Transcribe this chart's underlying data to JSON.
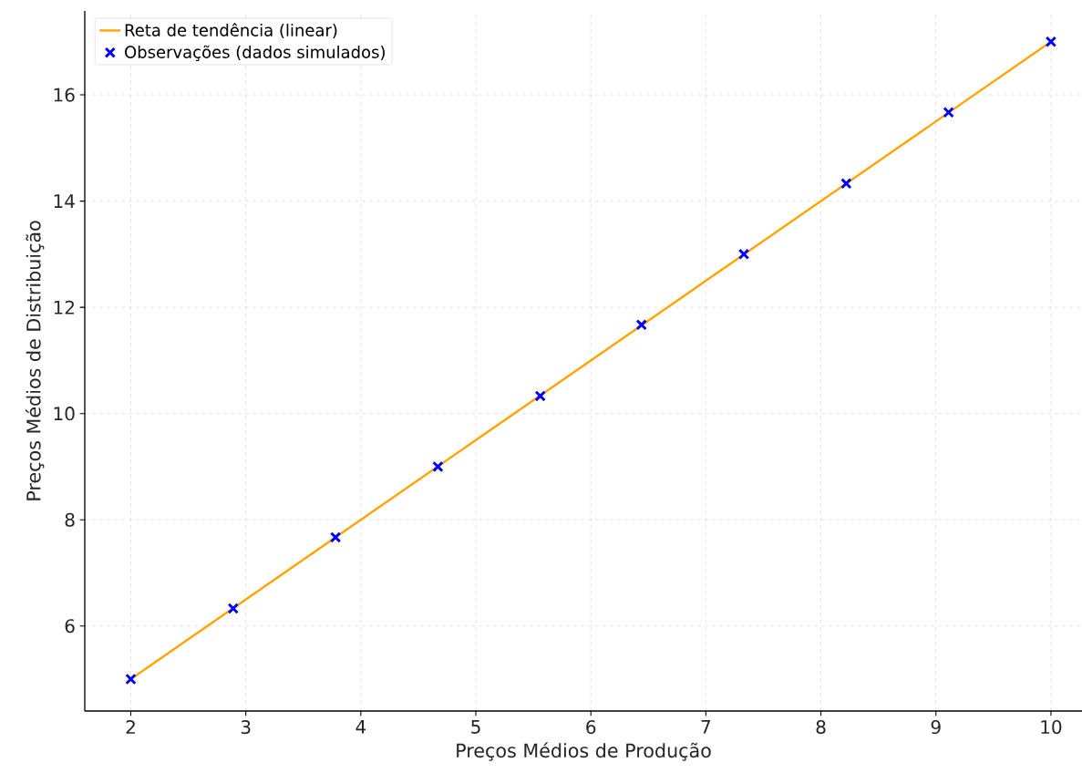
{
  "chart_data": {
    "type": "scatter",
    "xlabel": "Preços Médios de Produção",
    "ylabel": "Preços Médios de Distribuição",
    "xlim": [
      1.6,
      10.27
    ],
    "ylim": [
      4.4,
      17.58
    ],
    "xticks": [
      2,
      3,
      4,
      5,
      6,
      7,
      8,
      9,
      10
    ],
    "yticks": [
      6,
      8,
      10,
      12,
      14,
      16
    ],
    "grid": true,
    "legend": "top left",
    "series": [
      {
        "name": "Reta de tendência (linear)",
        "type": "line",
        "color": "#ffa500",
        "x": [
          2,
          10
        ],
        "values": [
          5,
          17
        ],
        "marker": "none",
        "line_style": "solid"
      },
      {
        "name": "Observações (dados simulados)",
        "color": "#0000ff",
        "marker": "cross",
        "x": [
          2,
          2.89,
          3.78,
          4.67,
          5.56,
          6.44,
          7.33,
          8.22,
          9.11,
          10
        ],
        "values": [
          5,
          6.33,
          7.67,
          9,
          10.33,
          11.67,
          13,
          14.33,
          15.67,
          17
        ]
      }
    ]
  }
}
